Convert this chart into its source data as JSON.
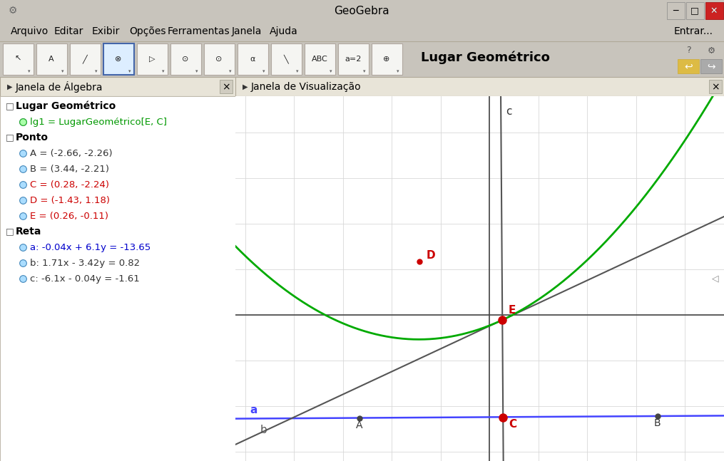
{
  "title": "GeoGebra",
  "titlebar_bg": "#d4d0c8",
  "titlebar_text_color": "#000000",
  "menubar_bg": "#f0ece0",
  "toolbar_bg": "#f0ece0",
  "panel_header_bg": "#e8e4d8",
  "alg_panel_bg": "#ffffff",
  "viz_panel_bg": "#ffffff",
  "menubar_items": [
    "Arquivo",
    "Editar",
    "Exibir",
    "Opções",
    "Ferramentas",
    "Janela",
    "Ajuda"
  ],
  "algebra_title": "Janela de Álgebra",
  "viz_title": "Janela de Visualização",
  "tool_label": "Lugar Geométrico",
  "point_A": [
    -2.66,
    -2.26
  ],
  "point_B": [
    3.44,
    -2.21
  ],
  "point_C": [
    0.28,
    -2.24
  ],
  "point_D": [
    -1.43,
    1.18
  ],
  "point_E": [
    0.26,
    -0.11
  ],
  "parabola_color": "#00aa00",
  "line_a_color": "#4444ff",
  "line_b_color": "#555555",
  "line_c_color": "#555555",
  "axis_color": "#444444",
  "grid_color": "#d8d8d8",
  "x_view_min": -5.2,
  "x_view_max": 4.8,
  "y_view_min": -3.2,
  "y_view_max": 4.8,
  "alg_content": [
    {
      "type": "section",
      "text": "Lugar Geométrico",
      "color": "#000000",
      "indent": 0
    },
    {
      "type": "item",
      "text": "lg1 = LugarGeométrico[E, C]",
      "color": "#009900",
      "indent": 1
    },
    {
      "type": "section",
      "text": "Ponto",
      "color": "#000000",
      "indent": 0
    },
    {
      "type": "item",
      "text": "A = (-2.66, -2.26)",
      "color": "#333333",
      "indent": 1
    },
    {
      "type": "item",
      "text": "B = (3.44, -2.21)",
      "color": "#333333",
      "indent": 1
    },
    {
      "type": "item",
      "text": "C = (0.28, -2.24)",
      "color": "#cc0000",
      "indent": 1
    },
    {
      "type": "item",
      "text": "D = (-1.43, 1.18)",
      "color": "#cc0000",
      "indent": 1
    },
    {
      "type": "item",
      "text": "E = (0.26, -0.11)",
      "color": "#cc0000",
      "indent": 1
    },
    {
      "type": "section",
      "text": "Reta",
      "color": "#000000",
      "indent": 0
    },
    {
      "type": "item",
      "text": "a: -0.04x + 6.1y = -13.65",
      "color": "#0000cc",
      "indent": 1
    },
    {
      "type": "item",
      "text": "b: 1.71x - 3.42y = 0.82",
      "color": "#333333",
      "indent": 1
    },
    {
      "type": "item",
      "text": "c: -6.1x - 0.04y = -1.61",
      "color": "#333333",
      "indent": 1
    }
  ]
}
